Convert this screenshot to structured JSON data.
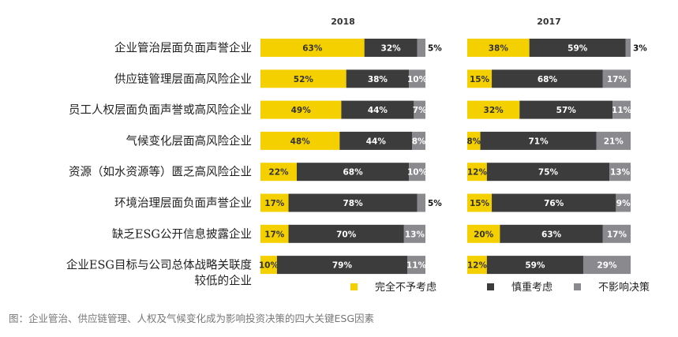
{
  "caption": "图：企业管治、供应链管理、人权及气候变化成为影响投资决策的四大关键ESG因素",
  "colors": {
    "complete": "#f5d000",
    "cautious": "#3c3c3c",
    "no_impact": "#8a8a8e",
    "label_dark": "#333333",
    "label_light": "#ffffff"
  },
  "chart_data": {
    "type": "bar",
    "orientation": "horizontal",
    "stacked": true,
    "legend_position": "bottom-right",
    "categories": [
      "企业管治层面负面声誉企业",
      "供应链管理层面高风险企业",
      "员工人权层面负面声誉或高风险企业",
      "气候变化层面高风险企业",
      "资源（如水资源等）匮乏高风险企业",
      "环境治理层面负面声誉企业",
      "缺乏ESG公开信息披露企业",
      "企业ESG目标与公司总体战略关联度较低的企业"
    ],
    "category_lines": [
      [
        "企业管治层面负面声誉企业"
      ],
      [
        "供应链管理层面高风险企业"
      ],
      [
        "员工人权层面负面声誉或高风险企业"
      ],
      [
        "气候变化层面高风险企业"
      ],
      [
        "资源（如水资源等）匮乏高风险企业"
      ],
      [
        "环境治理层面负面声誉企业"
      ],
      [
        "缺乏ESG公开信息披露企业"
      ],
      [
        "企业ESG目标与公司总体战略关联度",
        "较低的企业"
      ]
    ],
    "series_names": [
      "完全不予考虑",
      "慎重考虑",
      "不影响决策"
    ],
    "panels": [
      {
        "year": "2018",
        "series": [
          {
            "name": "完全不予考虑",
            "values": [
              63,
              52,
              49,
              48,
              22,
              17,
              17,
              10
            ]
          },
          {
            "name": "慎重考虑",
            "values": [
              32,
              38,
              44,
              44,
              68,
              78,
              70,
              79
            ]
          },
          {
            "name": "不影响决策",
            "values": [
              5,
              10,
              7,
              8,
              10,
              5,
              13,
              11
            ]
          }
        ]
      },
      {
        "year": "2017",
        "series": [
          {
            "name": "完全不予考虑",
            "values": [
              38,
              15,
              32,
              8,
              12,
              15,
              20,
              12
            ]
          },
          {
            "name": "慎重考虑",
            "values": [
              59,
              68,
              57,
              71,
              75,
              76,
              63,
              59
            ]
          },
          {
            "name": "不影响决策",
            "values": [
              3,
              17,
              11,
              21,
              13,
              9,
              17,
              29
            ]
          }
        ]
      }
    ]
  }
}
